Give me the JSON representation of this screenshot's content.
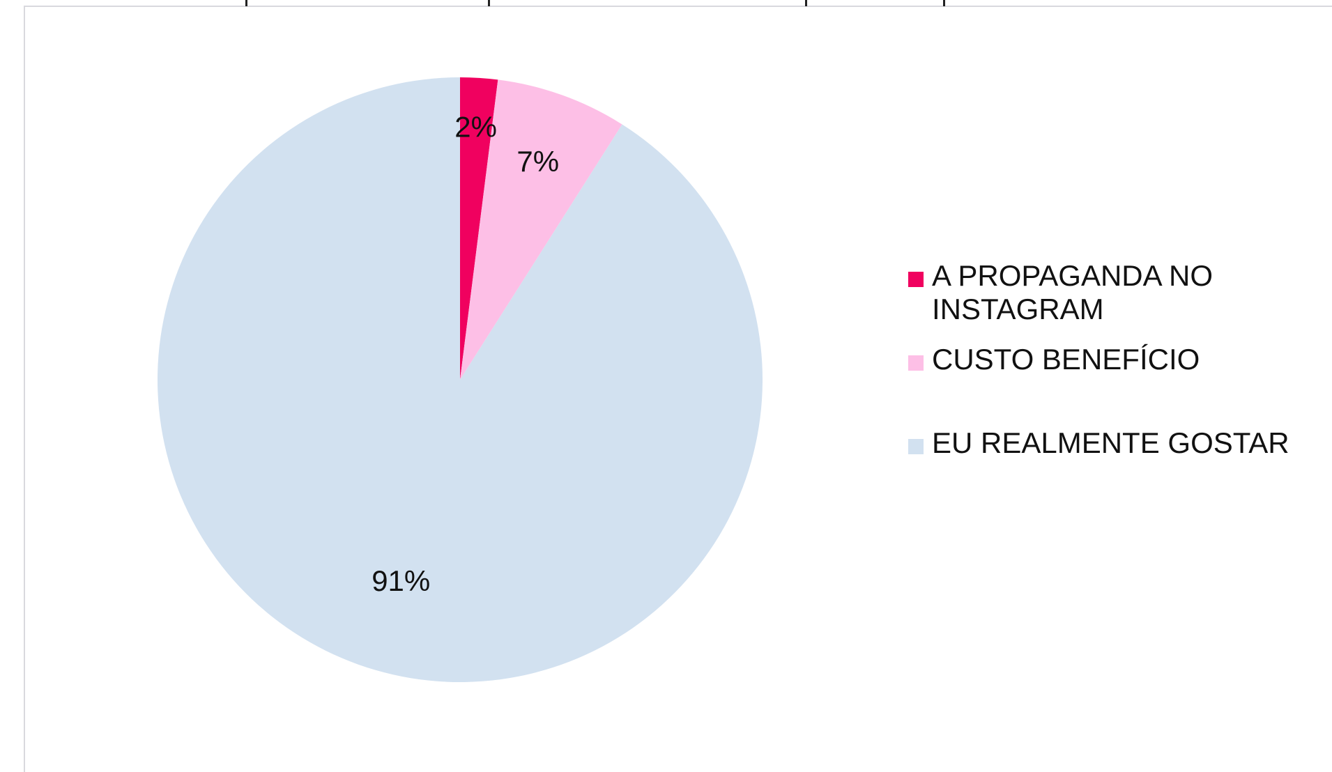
{
  "chart_data": {
    "type": "pie",
    "title": "",
    "categories": [
      "A PROPAGANDA NO INSTAGRAM",
      "CUSTO BENEFÍCIO",
      "EU REALMENTE GOSTAR"
    ],
    "values": [
      2,
      7,
      91
    ],
    "value_labels": [
      "2%",
      "7%",
      "91%"
    ],
    "colors": [
      "#f0015f",
      "#fdbfe6",
      "#d2e1f0"
    ],
    "legend": {
      "placement": "right",
      "items": [
        {
          "label": "A PROPAGANDA NO INSTAGRAM",
          "color": "#f0015f"
        },
        {
          "label": "CUSTO BENEFÍCIO",
          "color": "#fdbfe6"
        },
        {
          "label": "EU REALMENTE GOSTAR",
          "color": "#d2e1f0"
        }
      ]
    }
  }
}
